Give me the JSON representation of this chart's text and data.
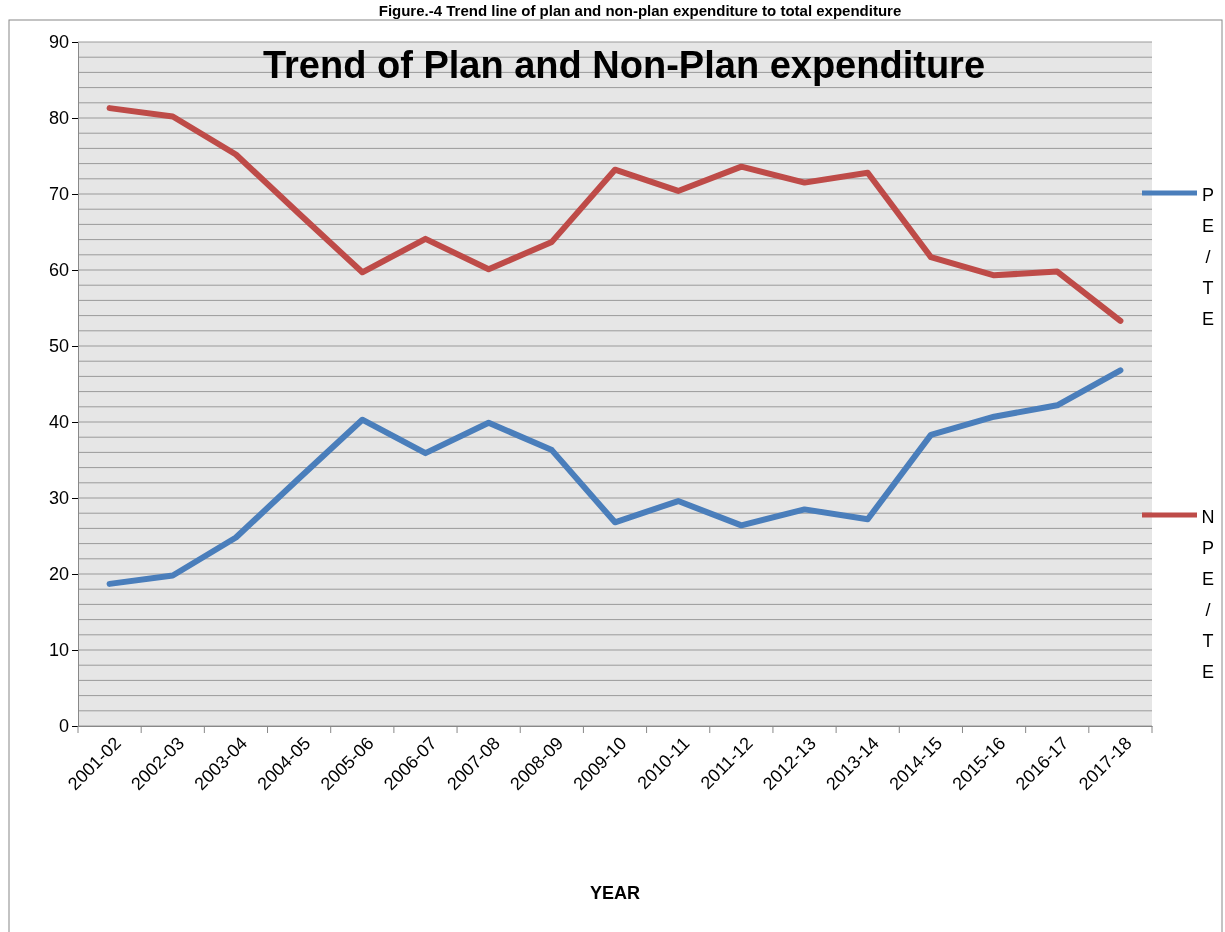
{
  "chart_data": {
    "type": "line",
    "title": "Figure.-4 Trend line of plan and non-plan expenditure to total expenditure",
    "subtitle": "Trend of Plan and Non-Plan expenditure",
    "xlabel": "YEAR",
    "categories": [
      "2001-02",
      "2002-03",
      "2003-04",
      "2004-05",
      "2005-06",
      "2006-07",
      "2007-08",
      "2008-09",
      "2009-10",
      "2010-11",
      "2011-12",
      "2012-13",
      "2013-14",
      "2014-15",
      "2015-16",
      "2016-17",
      "2017-18"
    ],
    "series": [
      {
        "name": "PE/TE",
        "color": "#4a7ebb",
        "values": [
          18.7,
          19.8,
          24.8,
          32.6,
          40.3,
          35.9,
          39.9,
          36.3,
          26.8,
          29.6,
          26.4,
          28.5,
          27.2,
          38.3,
          40.7,
          42.2,
          46.8
        ]
      },
      {
        "name": "NPE/TE",
        "color": "#be4b48",
        "values": [
          81.3,
          80.2,
          75.2,
          67.4,
          59.7,
          64.1,
          60.1,
          63.7,
          73.2,
          70.4,
          73.6,
          71.5,
          72.8,
          61.7,
          59.3,
          59.8,
          53.3
        ]
      }
    ],
    "ylim": [
      0,
      90
    ],
    "yticks": [
      0,
      {
        "value": 2,
        "label": null
      },
      {
        "value": 4,
        "label": null
      },
      {
        "value": 6,
        "label": null
      },
      {
        "value": 8,
        "label": null
      },
      10,
      {
        "value": 12,
        "label": null
      },
      {
        "value": 14,
        "label": null
      },
      {
        "value": 16,
        "label": null
      },
      {
        "value": 18,
        "label": null
      },
      20,
      {
        "value": 22,
        "label": null
      },
      {
        "value": 24,
        "label": null
      },
      {
        "value": 26,
        "label": null
      },
      {
        "value": 28,
        "label": null
      },
      30,
      {
        "value": 32,
        "label": null
      },
      {
        "value": 34,
        "label": null
      },
      {
        "value": 36,
        "label": null
      },
      {
        "value": 38,
        "label": null
      },
      40,
      {
        "value": 42,
        "label": null
      },
      {
        "value": 44,
        "label": null
      },
      {
        "value": 46,
        "label": null
      },
      {
        "value": 48,
        "label": null
      },
      50,
      {
        "value": 52,
        "label": null
      },
      {
        "value": 54,
        "label": null
      },
      {
        "value": 56,
        "label": null
      },
      {
        "value": 58,
        "label": null
      },
      60,
      {
        "value": 62,
        "label": null
      },
      {
        "value": 64,
        "label": null
      },
      {
        "value": 66,
        "label": null
      },
      {
        "value": 68,
        "label": null
      },
      70,
      {
        "value": 72,
        "label": null
      },
      {
        "value": 74,
        "label": null
      },
      {
        "value": 76,
        "label": null
      },
      {
        "value": 78,
        "label": null
      },
      80,
      {
        "value": 82,
        "label": null
      },
      {
        "value": 84,
        "label": null
      },
      {
        "value": 86,
        "label": null
      },
      {
        "value": 88,
        "label": null
      },
      90
    ],
    "grid": "y",
    "legend": "right",
    "marker": "none",
    "line_style": "solid"
  }
}
